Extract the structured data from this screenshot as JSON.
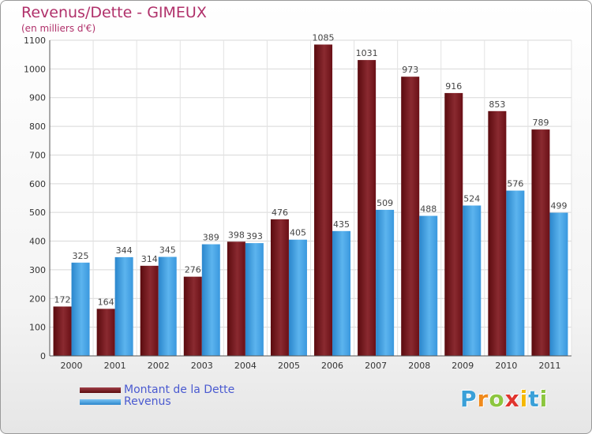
{
  "title": "Revenus/Dette - GIMEUX",
  "subtitle": "(en milliers d'€)",
  "logo": {
    "letters": [
      "P",
      "r",
      "o",
      "x",
      "i",
      "t",
      "i"
    ],
    "colors": [
      "#3aa0d8",
      "#f08a1c",
      "#8cc63f",
      "#e0342e",
      "#f5b800",
      "#3aa0d8",
      "#8cc63f"
    ]
  },
  "legend": {
    "items": [
      "Montant de la Dette",
      "Revenus"
    ],
    "colors": [
      "#6e0e12",
      "#3a9ae0"
    ]
  },
  "chart_data": {
    "type": "bar",
    "title": "Revenus/Dette - GIMEUX",
    "ylabel": "(en milliers d'€)",
    "xlabel": "",
    "categories": [
      "2000",
      "2001",
      "2002",
      "2003",
      "2004",
      "2005",
      "2006",
      "2007",
      "2008",
      "2009",
      "2010",
      "2011"
    ],
    "series": [
      {
        "name": "Montant de la Dette",
        "color": "#7a1a20",
        "values": [
          172,
          164,
          314,
          276,
          398,
          476,
          1085,
          1031,
          973,
          916,
          853,
          789
        ]
      },
      {
        "name": "Revenus",
        "color": "#4aa6e6",
        "values": [
          325,
          344,
          345,
          389,
          393,
          405,
          435,
          509,
          488,
          524,
          576,
          499
        ]
      }
    ],
    "ylim": [
      0,
      1100
    ],
    "yticks": [
      0,
      100,
      200,
      300,
      400,
      500,
      600,
      700,
      800,
      900,
      1000,
      1100
    ],
    "grid": true,
    "legend_position": "bottom-left"
  }
}
